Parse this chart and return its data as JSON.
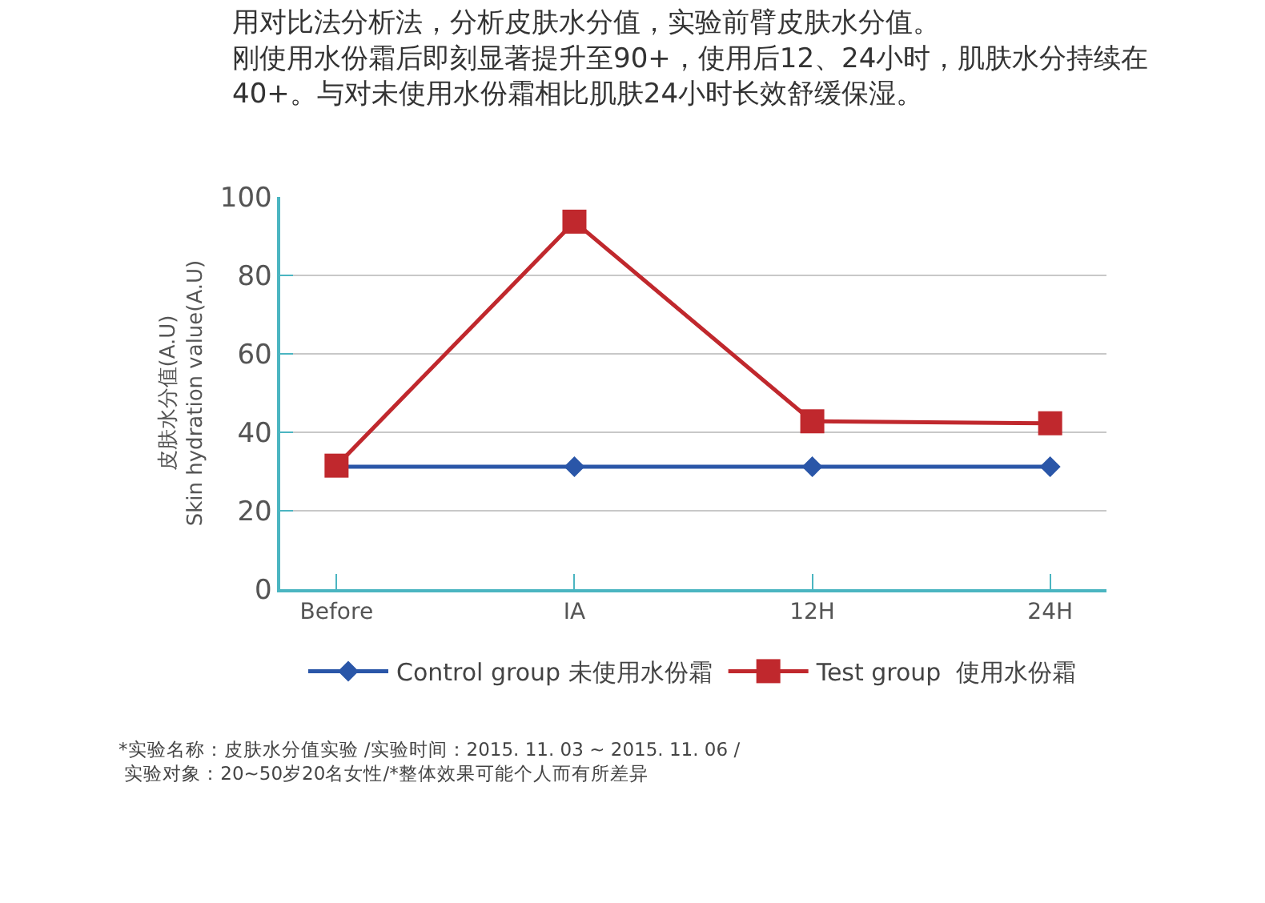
{
  "chart_data": {
    "type": "line",
    "title": "用对比法分析法，分析皮肤水分值，实验前臂皮肤水分值。",
    "subtitle": "刚使用水份霜后即刻显著提升至90+，使用后12、24小时，肌肤水分持续在40+。与对未使用水份霜相比肌肤24小时长效舒缓保湿。",
    "ylabel": "皮肤水分值(A.U)\nSkin hydration value(A.U)",
    "categories": [
      "Before",
      "IA",
      "12H",
      "24H"
    ],
    "series": [
      {
        "name": "Control group 未使用水份霜",
        "color": "#2a56a8",
        "marker": "diamond",
        "values": [
          31.2,
          31.2,
          31.2,
          31.2
        ]
      },
      {
        "name": "Test group  使用水份霜",
        "color": "#c0282d",
        "marker": "square",
        "values": [
          31.5,
          93.7,
          42.8,
          42.3
        ]
      }
    ],
    "ylim": [
      0,
      100
    ],
    "yticks": [
      0,
      20,
      40,
      60,
      80,
      100
    ],
    "grid": "y",
    "legend": "bottom",
    "line_style": "solid",
    "annotations": [
      "*实验名称：皮肤水分值实验 /实验时间：2015. 11. 03 ~ 2015. 11. 06 /\n 实验对象：20~50岁20名女性/*整体效果可能个人而有所差异"
    ]
  }
}
